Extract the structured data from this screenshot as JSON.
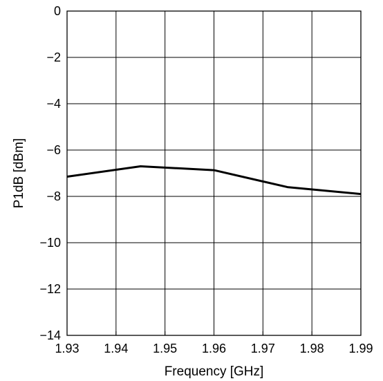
{
  "chart_data": {
    "type": "line",
    "title": "",
    "xlabel": "Frequency [GHz]",
    "ylabel": "P1dB [dBm]",
    "xlim": [
      1.93,
      1.99
    ],
    "ylim": [
      -14,
      0
    ],
    "xticks": [
      1.93,
      1.94,
      1.95,
      1.96,
      1.97,
      1.98,
      1.99
    ],
    "xtick_labels": [
      "1.93",
      "1.94",
      "1.95",
      "1.96",
      "1.97",
      "1.98",
      "1.99"
    ],
    "yticks": [
      0,
      -2,
      -4,
      -6,
      -8,
      -10,
      -12,
      -14
    ],
    "ytick_labels": [
      "0",
      "−2",
      "−4",
      "−6",
      "−8",
      "−10",
      "−12",
      "−14"
    ],
    "grid": true,
    "legend": false,
    "series": [
      {
        "x": [
          1.93,
          1.945,
          1.96,
          1.975,
          1.99
        ],
        "y": [
          -7.15,
          -6.7,
          -6.87,
          -7.6,
          -7.9
        ],
        "color": "#000000"
      }
    ]
  }
}
